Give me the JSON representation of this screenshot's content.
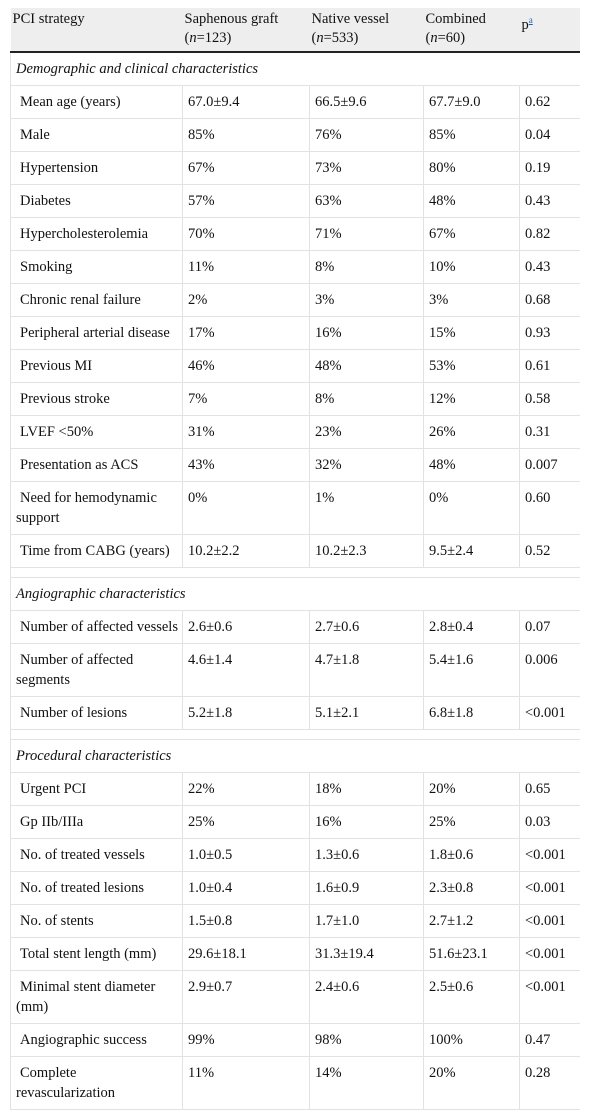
{
  "header": {
    "col0": "PCI strategy",
    "col1_line1": "Saphenous graft",
    "col1_italic": "n",
    "col1_rest": "=123)",
    "col2_line1": "Native vessel",
    "col2_italic": "n",
    "col2_rest": "=533)",
    "col3_line1": "Combined",
    "col3_italic": "n",
    "col3_rest": "=60)",
    "col4_label": "p",
    "col4_footnote": "a"
  },
  "sections": [
    {
      "title": "Demographic and clinical characteristics",
      "rows": [
        [
          "Mean age (years)",
          "67.0±9.4",
          "66.5±9.6",
          "67.7±9.0",
          "0.62"
        ],
        [
          "Male",
          "85%",
          "76%",
          "85%",
          "0.04"
        ],
        [
          "Hypertension",
          "67%",
          "73%",
          "80%",
          "0.19"
        ],
        [
          "Diabetes",
          "57%",
          "63%",
          "48%",
          "0.43"
        ],
        [
          "Hypercholesterolemia",
          "70%",
          "71%",
          "67%",
          "0.82"
        ],
        [
          "Smoking",
          "11%",
          "8%",
          "10%",
          "0.43"
        ],
        [
          "Chronic renal failure",
          "2%",
          "3%",
          "3%",
          "0.68"
        ],
        [
          "Peripheral arterial disease",
          "17%",
          "16%",
          "15%",
          "0.93"
        ],
        [
          "Previous MI",
          "46%",
          "48%",
          "53%",
          "0.61"
        ],
        [
          "Previous stroke",
          "7%",
          "8%",
          "12%",
          "0.58"
        ],
        [
          "LVEF <50%",
          "31%",
          "23%",
          "26%",
          "0.31"
        ],
        [
          "Presentation as ACS",
          "43%",
          "32%",
          "48%",
          "0.007"
        ],
        [
          "Need for hemodynamic support",
          "0%",
          "1%",
          "0%",
          "0.60"
        ],
        [
          "Time from CABG (years)",
          "10.2±2.2",
          "10.2±2.3",
          "9.5±2.4",
          "0.52"
        ]
      ]
    },
    {
      "title": "Angiographic characteristics",
      "rows": [
        [
          "Number of affected vessels",
          "2.6±0.6",
          "2.7±0.6",
          "2.8±0.4",
          "0.07"
        ],
        [
          "Number of affected segments",
          "4.6±1.4",
          "4.7±1.8",
          "5.4±1.6",
          "0.006"
        ],
        [
          "Number of lesions",
          "5.2±1.8",
          "5.1±2.1",
          "6.8±1.8",
          "<0.001"
        ]
      ]
    },
    {
      "title": "Procedural characteristics",
      "rows": [
        [
          "Urgent PCI",
          "22%",
          "18%",
          "20%",
          "0.65"
        ],
        [
          "Gp IIb/IIIa",
          "25%",
          "16%",
          "25%",
          "0.03"
        ],
        [
          "No. of treated vessels",
          "1.0±0.5",
          "1.3±0.6",
          "1.8±0.6",
          "<0.001"
        ],
        [
          "No. of treated lesions",
          "1.0±0.4",
          "1.6±0.9",
          "2.3±0.8",
          "<0.001"
        ],
        [
          "No. of stents",
          "1.5±0.8",
          "1.7±1.0",
          "2.7±1.2",
          "<0.001"
        ],
        [
          "Total stent length (mm)",
          "29.6±18.1",
          "31.3±19.4",
          "51.6±23.1",
          "<0.001"
        ],
        [
          "Minimal stent diameter (mm)",
          "2.9±0.7",
          "2.4±0.6",
          "2.5±0.6",
          "<0.001"
        ],
        [
          "Angiographic success",
          "99%",
          "98%",
          "100%",
          "0.47"
        ],
        [
          "Complete revascularization",
          "11%",
          "14%",
          "20%",
          "0.28"
        ]
      ]
    }
  ]
}
